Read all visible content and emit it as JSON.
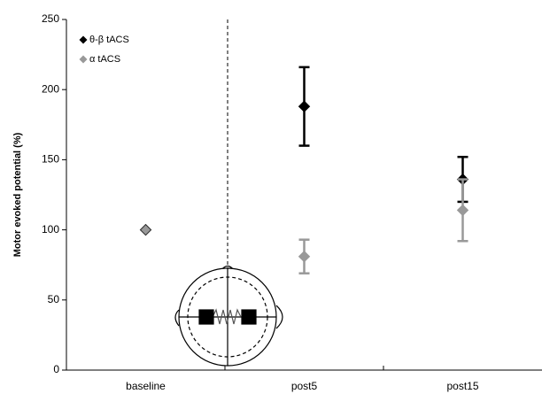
{
  "chart_data": {
    "type": "scatter",
    "y_label": "Motor evoked potential (%)",
    "categories": [
      "baseline",
      "post5",
      "post15"
    ],
    "series": [
      {
        "name": "θ-β tACS",
        "color": "#000000",
        "values": [
          100,
          188,
          136
        ],
        "errors": [
          null,
          28,
          16
        ]
      },
      {
        "name": "α tACS",
        "color": "#999999",
        "values": [
          100,
          81,
          114
        ],
        "errors": [
          null,
          12,
          22
        ]
      }
    ],
    "ylim": [
      0,
      250
    ],
    "yticks": [
      0,
      50,
      100,
      150,
      200,
      250
    ],
    "legend": "upper left"
  }
}
